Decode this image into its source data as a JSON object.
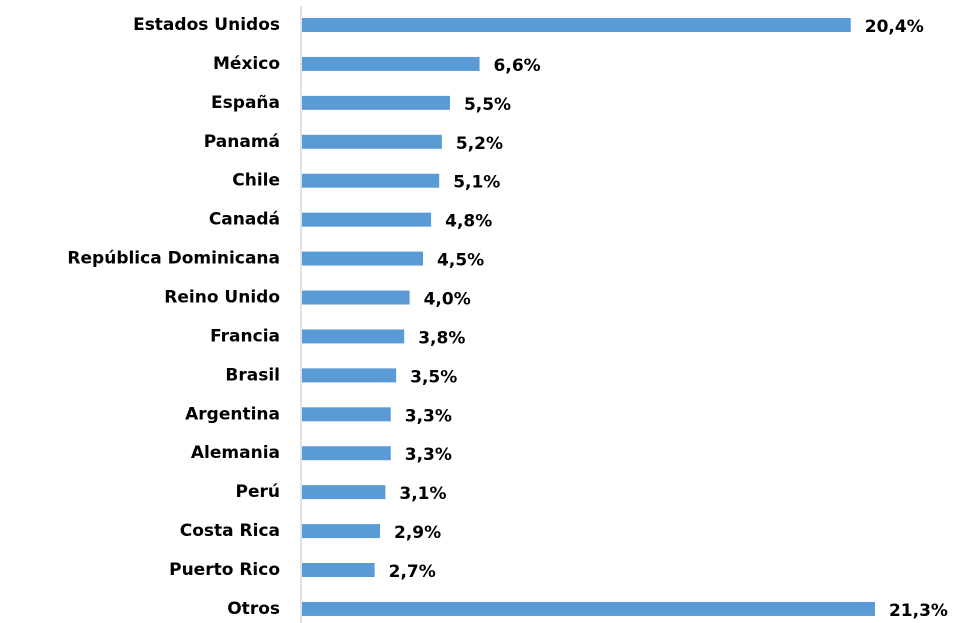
{
  "chart_data": {
    "type": "bar",
    "orientation": "horizontal",
    "categories": [
      "Estados Unidos",
      "México",
      "España",
      "Panamá",
      "Chile",
      "Canadá",
      "República Dominicana",
      "Reino Unido",
      "Francia",
      "Brasil",
      "Argentina",
      "Alemania",
      "Perú",
      "Costa Rica",
      "Puerto Rico",
      "Otros"
    ],
    "values": [
      20.4,
      6.6,
      5.5,
      5.2,
      5.1,
      4.8,
      4.5,
      4.0,
      3.8,
      3.5,
      3.3,
      3.3,
      3.1,
      2.9,
      2.7,
      21.3
    ],
    "value_labels": [
      "20,4%",
      "6,6%",
      "5,5%",
      "5,2%",
      "5,1%",
      "4,8%",
      "4,5%",
      "4,0%",
      "3,8%",
      "3,5%",
      "3,3%",
      "3,3%",
      "3,1%",
      "2,9%",
      "2,7%",
      "21,3%"
    ],
    "color": "#5b9bd5"
  }
}
